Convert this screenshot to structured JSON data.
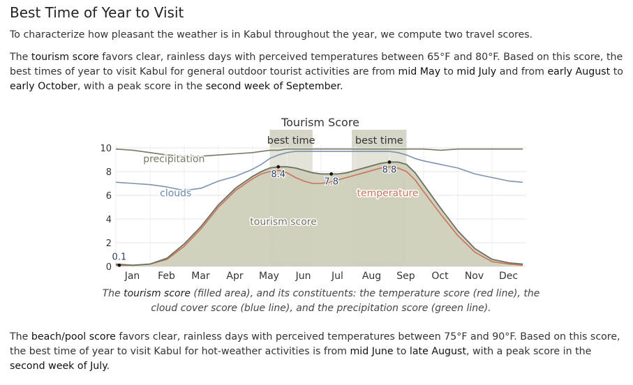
{
  "heading": "Best Time of Year to Visit",
  "intro": "To characterize how pleasant the weather is in Kabul throughout the year, we compute two travel scores.",
  "tourism": {
    "t1": "The ",
    "k1": "tourism score",
    "t2": " favors clear, rainless days with perceived temperatures between 65°F and 80°F. Based on this score, the best times of year to visit Kabul for general outdoor tourist activities are from ",
    "k2": "mid May",
    "t3": " to ",
    "k3": "mid July",
    "t4": " and from ",
    "k4": "early August",
    "t5": " to ",
    "k5": "early October",
    "t6": ", with a peak score in the ",
    "k6": "second week of September",
    "t7": "."
  },
  "caption": {
    "t1": "The ",
    "k1": "tourism score",
    "t2": " (filled area), and its constituents: the temperature score (red line), the cloud cover score (blue line), and the precipitation score (green line)."
  },
  "beach": {
    "t1": "The ",
    "k1": "beach/pool score",
    "t2": " favors clear, rainless days with perceived temperatures between 75°F and 90°F. Based on this score, the best time of year to visit Kabul for hot-weather activities is from ",
    "k2": "mid June",
    "t3": " to ",
    "k3": "late August",
    "t4": ", with a peak score in the ",
    "k4": "second week of July",
    "t5": "."
  },
  "chart_data": {
    "type": "area",
    "title": "Tourism Score",
    "categories": [
      "Jan",
      "Feb",
      "Mar",
      "Apr",
      "May",
      "Jun",
      "Jul",
      "Aug",
      "Sep",
      "Oct",
      "Nov",
      "Dec"
    ],
    "yticks": [
      0,
      2,
      4,
      6,
      8,
      10
    ],
    "ylim": [
      0,
      10
    ],
    "grid": true,
    "best_time_label": "best time",
    "best_time_periods": [
      [
        4.5,
        5.75
      ],
      [
        6.9,
        8.5
      ]
    ],
    "x": [
      0,
      0.5,
      1,
      1.5,
      2,
      2.5,
      3,
      3.5,
      4,
      4.25,
      4.5,
      4.75,
      5,
      5.25,
      5.5,
      5.75,
      6,
      6.25,
      6.5,
      6.75,
      7,
      7.25,
      7.5,
      7.75,
      8,
      8.25,
      8.5,
      8.75,
      9,
      9.5,
      10,
      10.5,
      11,
      11.5,
      11.9
    ],
    "series": [
      {
        "name": "tourism score",
        "color": "#cdcdb9",
        "values": [
          0.2,
          0.1,
          0.2,
          0.7,
          1.9,
          3.4,
          5.2,
          6.6,
          7.6,
          8.0,
          8.3,
          8.4,
          8.4,
          8.3,
          8.1,
          7.9,
          7.8,
          7.8,
          7.8,
          7.9,
          8.1,
          8.3,
          8.5,
          8.7,
          8.8,
          8.8,
          8.6,
          7.9,
          6.9,
          4.9,
          3.0,
          1.5,
          0.6,
          0.3,
          0.2
        ]
      },
      {
        "name": "temperature",
        "color": "#c8735a",
        "values": [
          0.1,
          0.1,
          0.2,
          0.6,
          1.7,
          3.2,
          5.0,
          6.4,
          7.4,
          7.8,
          8.0,
          8.1,
          7.9,
          7.5,
          7.2,
          7.0,
          7.0,
          7.1,
          7.3,
          7.5,
          7.7,
          7.9,
          8.1,
          8.3,
          8.4,
          8.3,
          8.0,
          7.3,
          6.3,
          4.4,
          2.6,
          1.2,
          0.4,
          0.2,
          0.1
        ]
      },
      {
        "name": "clouds",
        "color": "#7a94b0",
        "values": [
          7.1,
          7.0,
          6.9,
          6.7,
          6.4,
          6.6,
          7.2,
          7.6,
          8.2,
          8.6,
          9.1,
          9.4,
          9.6,
          9.7,
          9.7,
          9.7,
          9.7,
          9.7,
          9.7,
          9.7,
          9.7,
          9.7,
          9.7,
          9.7,
          9.7,
          9.6,
          9.4,
          9.1,
          8.9,
          8.6,
          8.3,
          7.8,
          7.5,
          7.2,
          7.1
        ]
      },
      {
        "name": "precipitation",
        "color": "#737a63",
        "values": [
          9.9,
          9.8,
          9.6,
          9.4,
          9.3,
          9.3,
          9.4,
          9.5,
          9.6,
          9.7,
          9.8,
          9.8,
          9.9,
          9.9,
          9.9,
          9.9,
          9.9,
          9.9,
          9.9,
          9.9,
          9.9,
          9.9,
          9.9,
          9.9,
          9.9,
          9.9,
          9.9,
          9.9,
          9.9,
          9.8,
          9.9,
          9.9,
          9.9,
          9.9,
          9.9
        ]
      }
    ],
    "annotations": [
      {
        "x": 0.1,
        "y": 0.1,
        "text": "0.1"
      },
      {
        "x": 4.75,
        "y": 8.4,
        "text": "8.4"
      },
      {
        "x": 6.3,
        "y": 7.8,
        "text": "7.8"
      },
      {
        "x": 8.0,
        "y": 8.8,
        "text": "8.8"
      }
    ],
    "series_labels": [
      {
        "text": "precipitation",
        "x": 1.7,
        "y": 8.8,
        "color": "#737a63"
      },
      {
        "text": "clouds",
        "x": 1.75,
        "y": 5.9,
        "color": "#6a86a8"
      },
      {
        "text": "temperature",
        "x": 7.95,
        "y": 5.9,
        "color": "#c8735a"
      },
      {
        "text": "tourism score",
        "x": 4.9,
        "y": 3.5,
        "color": "#6f6f5f"
      }
    ]
  }
}
